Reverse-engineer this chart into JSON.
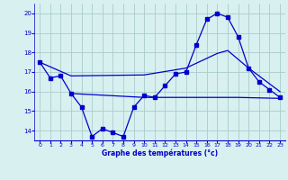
{
  "title": "Graphe des températures (°c)",
  "bg_color": "#d8f0f0",
  "grid_color": "#aacccc",
  "line_color": "#0000cc",
  "xlim": [
    -0.5,
    23.5
  ],
  "ylim": [
    13.5,
    20.5
  ],
  "yticks": [
    14,
    15,
    16,
    17,
    18,
    19,
    20
  ],
  "xticks": [
    0,
    1,
    2,
    3,
    4,
    5,
    6,
    7,
    8,
    9,
    10,
    11,
    12,
    13,
    14,
    15,
    16,
    17,
    18,
    19,
    20,
    21,
    22,
    23
  ],
  "series1_x": [
    0,
    1,
    2,
    3,
    4,
    5,
    6,
    7,
    8,
    9,
    10,
    11,
    12,
    13,
    14,
    15,
    16,
    17,
    18,
    19,
    20,
    21,
    22,
    23
  ],
  "series1_y": [
    17.5,
    16.7,
    16.8,
    15.9,
    15.2,
    13.7,
    14.1,
    13.9,
    13.7,
    15.2,
    15.8,
    15.7,
    16.3,
    16.9,
    17.0,
    18.4,
    19.7,
    20.0,
    19.8,
    18.8,
    17.2,
    16.5,
    16.1,
    15.7
  ],
  "series2_x": [
    0,
    3,
    10,
    14,
    17,
    18,
    20,
    23
  ],
  "series2_y": [
    17.5,
    16.8,
    16.85,
    17.2,
    17.95,
    18.1,
    17.2,
    16.0
  ],
  "series3_x": [
    3,
    10,
    19,
    23
  ],
  "series3_y": [
    15.9,
    15.7,
    15.7,
    15.65
  ]
}
